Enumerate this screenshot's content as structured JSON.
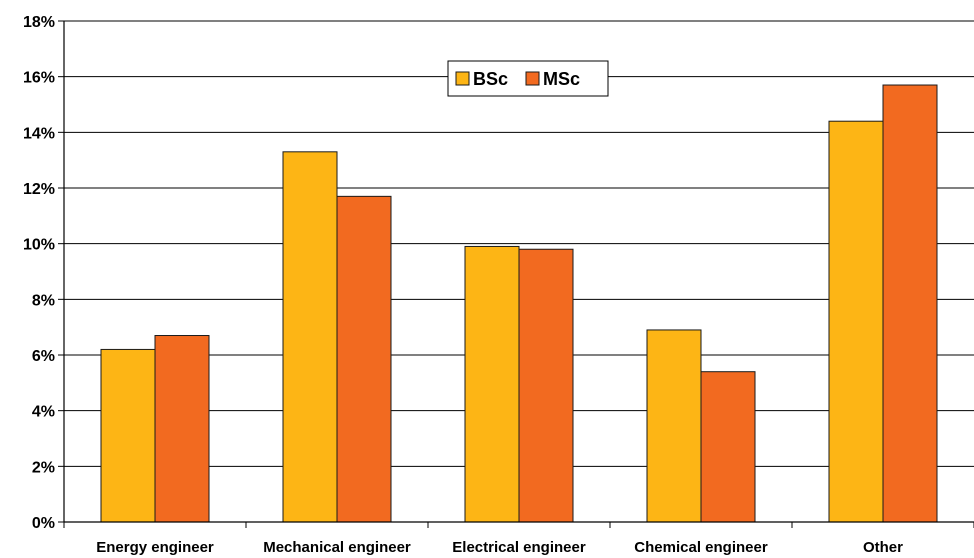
{
  "chart_data": {
    "type": "bar",
    "title": "",
    "xlabel": "",
    "ylabel": "",
    "categories": [
      "Energy engineer",
      "Mechanical engineer",
      "Electrical engineer",
      "Chemical engineer",
      "Other"
    ],
    "series": [
      {
        "name": "BSc",
        "color": "#FDB515",
        "values": [
          6.2,
          13.3,
          9.9,
          6.9,
          14.4
        ]
      },
      {
        "name": "MSc",
        "color": "#F26A20",
        "values": [
          6.7,
          11.7,
          9.8,
          5.4,
          15.7
        ]
      }
    ],
    "yticks": [
      "0%",
      "2%",
      "4%",
      "6%",
      "8%",
      "10%",
      "12%",
      "14%",
      "16%",
      "18%"
    ],
    "ylim": [
      0,
      18
    ],
    "grid": true,
    "legend_position": "top-center"
  }
}
